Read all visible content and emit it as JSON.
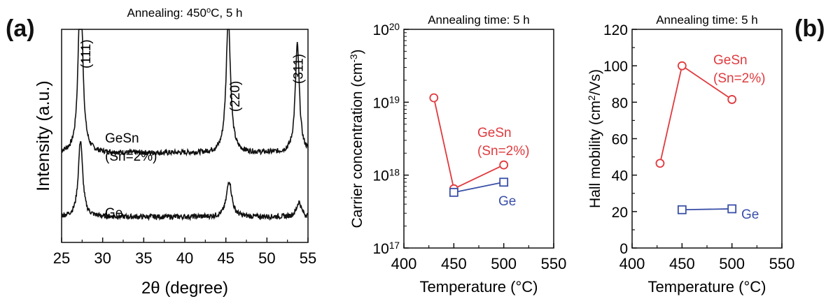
{
  "panel_labels": {
    "a": "(a)",
    "b": "(b)"
  },
  "chart_data": [
    {
      "type": "line",
      "title": "Annealing: 450",
      "title_suffix": "C, 5 h",
      "title_sup": "o",
      "xlabel": "2θ (degree)",
      "ylabel": "Intensity (a.u.)",
      "xlim": [
        25,
        55
      ],
      "xticks": [
        25,
        30,
        35,
        40,
        45,
        50,
        55
      ],
      "y_scale": "arbitrary units",
      "peaks": [
        {
          "label": "(111)",
          "x": 27.3
        },
        {
          "label": "(220)",
          "x": 45.3
        },
        {
          "label": "(311)",
          "x": 53.7
        }
      ],
      "series": [
        {
          "name": "GeSn",
          "name_line2": "(Sn=2%)",
          "color": "#111111",
          "baseline": 0.42,
          "noise": 0.012,
          "peaks": [
            {
              "x": 27.3,
              "height": 0.95,
              "width": 0.28
            },
            {
              "x": 45.3,
              "height": 0.64,
              "width": 0.32
            },
            {
              "x": 53.7,
              "height": 0.51,
              "width": 0.3
            }
          ]
        },
        {
          "name": "Ge",
          "color": "#111111",
          "baseline": 0.12,
          "noise": 0.012,
          "peaks": [
            {
              "x": 27.3,
              "height": 0.36,
              "width": 0.32
            },
            {
              "x": 45.4,
              "height": 0.17,
              "width": 0.38
            },
            {
              "x": 53.9,
              "height": 0.07,
              "width": 0.35
            }
          ]
        }
      ]
    },
    {
      "type": "line",
      "title": "Annealing time: 5 h",
      "xlabel": "Temperature (°C)",
      "ylabel": "Carrier concentration (cm",
      "ylabel_sup": "-3",
      "ylabel_end": ")",
      "xlim": [
        400,
        550
      ],
      "xticks": [
        400,
        450,
        500,
        550
      ],
      "y_scale": "log",
      "ylim": [
        1e+17,
        1e+20
      ],
      "yticks": [
        {
          "base": "10",
          "exp": "17",
          "value": 1e+17
        },
        {
          "base": "10",
          "exp": "18",
          "value": 1e+18
        },
        {
          "base": "10",
          "exp": "19",
          "value": 1e+19
        },
        {
          "base": "10",
          "exp": "20",
          "value": 1e+20
        }
      ],
      "series": [
        {
          "name": "GeSn",
          "name_line2": "(Sn=2%)",
          "color": "#e03a3e",
          "marker": "circle",
          "x": [
            430,
            450,
            500
          ],
          "y": [
            1.15e+19,
            6.5e+17,
            1.38e+18
          ]
        },
        {
          "name": "Ge",
          "color": "#3a4fa8",
          "marker": "square",
          "x": [
            450,
            500
          ],
          "y": [
            5.8e+17,
            8e+17
          ]
        }
      ]
    },
    {
      "type": "line",
      "title": "Annealing time: 5 h",
      "xlabel": "Temperature (°C)",
      "ylabel": "Hall mobility (cm",
      "ylabel_sup": "2",
      "ylabel_end": "/Vs)",
      "xlim": [
        400,
        550
      ],
      "xticks": [
        400,
        450,
        500,
        550
      ],
      "ylim": [
        0,
        120
      ],
      "yticks": [
        0,
        20,
        40,
        60,
        80,
        100,
        120
      ],
      "series": [
        {
          "name": "GeSn",
          "name_line2": "(Sn=2%)",
          "color": "#e03a3e",
          "marker": "circle",
          "x": [
            428,
            450,
            500
          ],
          "y": [
            46.5,
            100,
            81.5
          ]
        },
        {
          "name": "Ge",
          "color": "#3a4fa8",
          "marker": "square",
          "x": [
            450,
            500
          ],
          "y": [
            21,
            21.5
          ]
        }
      ]
    }
  ]
}
